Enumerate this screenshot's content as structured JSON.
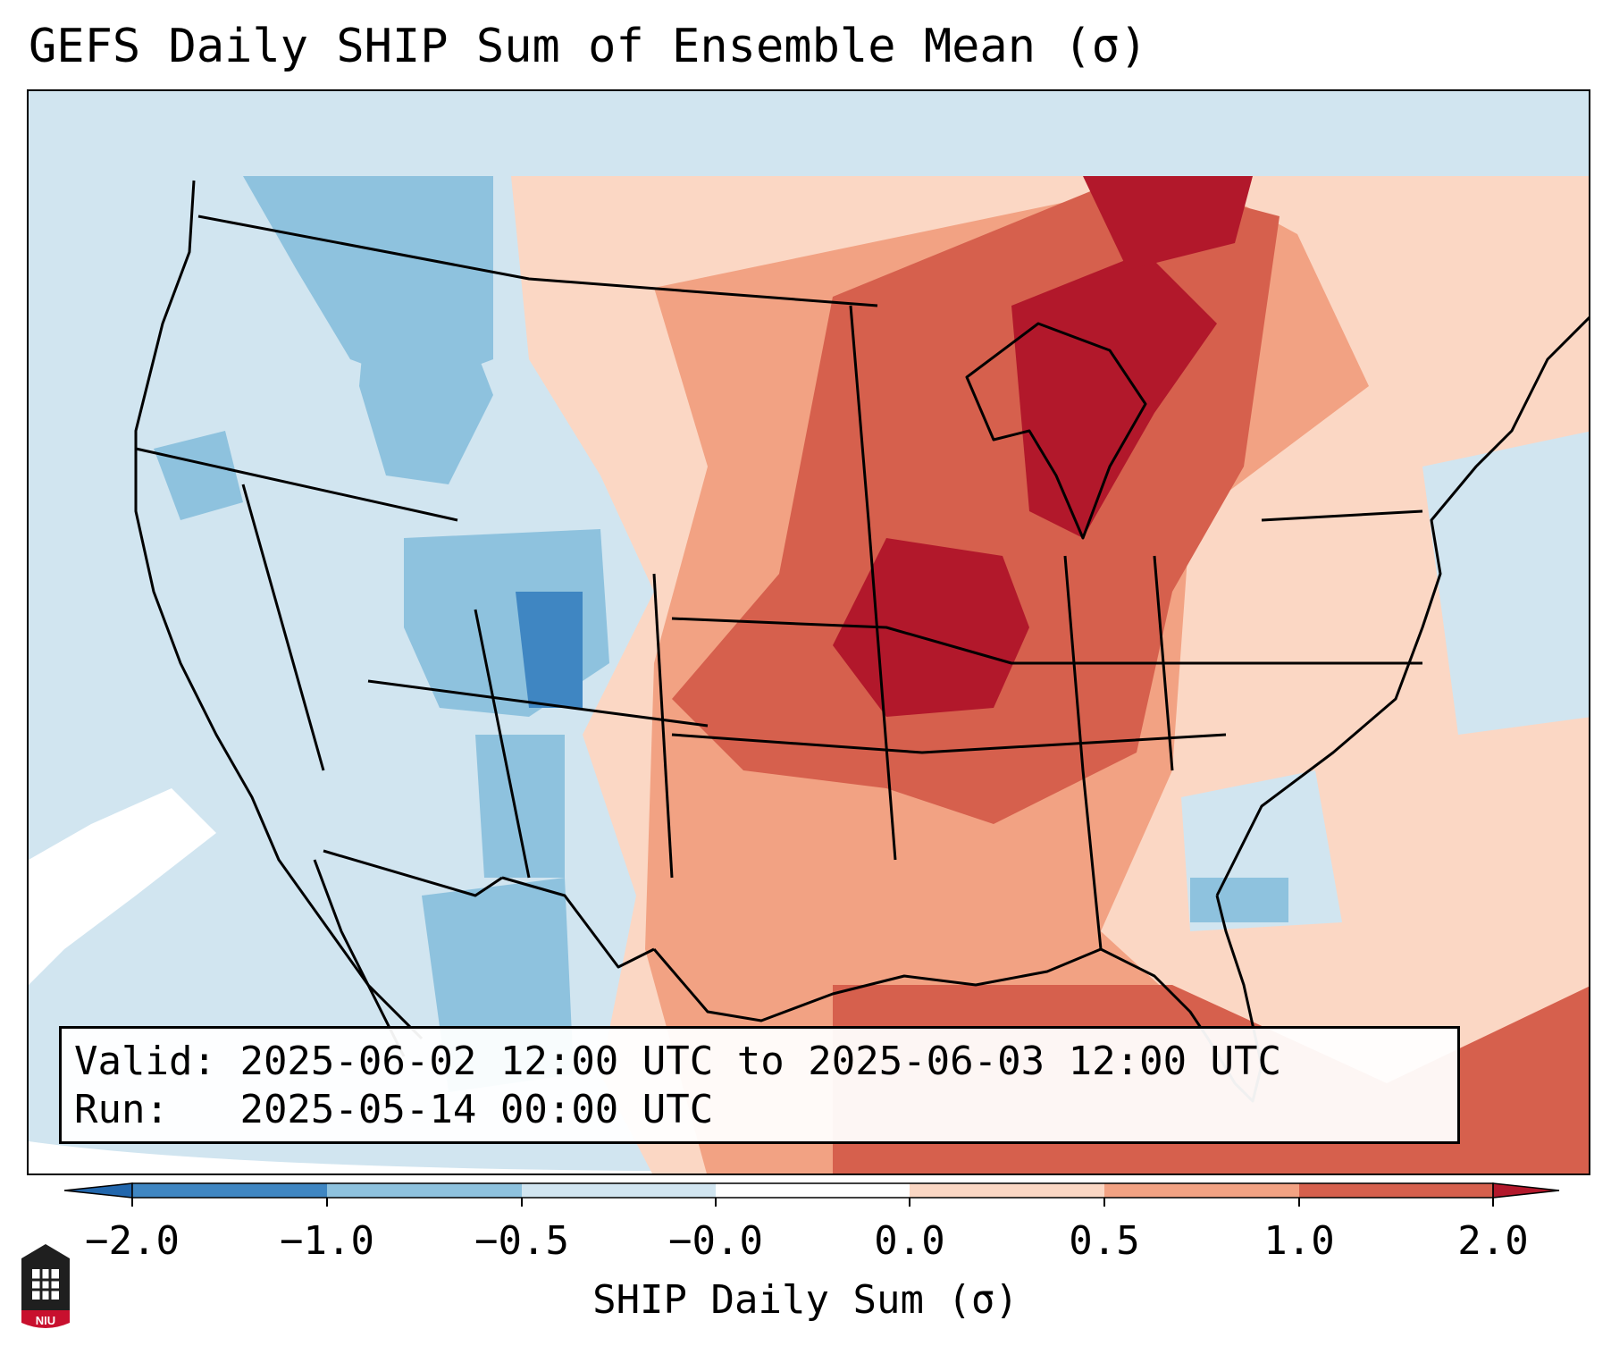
{
  "title": "GEFS Daily SHIP Sum of Ensemble Mean (σ)",
  "info": {
    "valid_label": "Valid:",
    "valid_value": "2025-06-02 12:00 UTC to 2025-06-03 12:00 UTC",
    "run_label": "Run:",
    "run_value": "2025-05-14 00:00 UTC"
  },
  "colorbar": {
    "label": "SHIP Daily Sum (σ)",
    "ticks": [
      "−2.0",
      "−1.0",
      "−0.5",
      "−0.0",
      "0.0",
      "0.5",
      "1.0",
      "2.0"
    ],
    "colors": [
      "#3f86c2",
      "#8ec2de",
      "#d1e5f0",
      "#ffffff",
      "#fbd7c4",
      "#f2a283",
      "#d6604d",
      "#b2182b"
    ]
  },
  "logo": {
    "text": "NIU"
  }
}
